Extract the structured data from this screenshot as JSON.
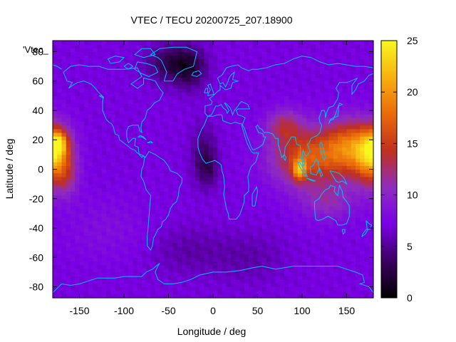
{
  "chart_data": {
    "type": "heatmap",
    "title": "VTEC / TECU 20200725_207.18900",
    "xlabel": "Longitude / deg",
    "ylabel": "Latitude / deg",
    "series_label": "'Vtec_",
    "xlim": [
      -180,
      180
    ],
    "ylim": [
      -87.5,
      87.5
    ],
    "x_ticks": [
      -150,
      -100,
      -50,
      0,
      50,
      100,
      150
    ],
    "y_ticks": [
      -80,
      -60,
      -40,
      -20,
      0,
      20,
      40,
      60,
      80
    ],
    "colorbar": {
      "range": [
        0,
        25
      ],
      "ticks": [
        0,
        5,
        10,
        15,
        20,
        25
      ],
      "colors": [
        "#000000",
        "#3a0060",
        "#7a00e6",
        "#8f2cc0",
        "#c0301e",
        "#ea6a0a",
        "#f8b010",
        "#f8f820"
      ]
    },
    "grid": {
      "lon_step": 5,
      "lat_step": 2.5,
      "background_value": 7,
      "blobs": [
        {
          "lon": -178,
          "lat": 14,
          "amp": 10.5,
          "slon": 13,
          "slat": 11
        },
        {
          "lon": -173,
          "lat": 18,
          "amp": 6.5,
          "slon": 6,
          "slat": 5
        },
        {
          "lon": -165,
          "lat": -5,
          "amp": 4.5,
          "slon": 10,
          "slat": 10
        },
        {
          "lon": 105,
          "lat": 8,
          "amp": 9,
          "slon": 28,
          "slat": 14
        },
        {
          "lon": 97,
          "lat": 0,
          "amp": 9,
          "slon": 5,
          "slat": 5
        },
        {
          "lon": 155,
          "lat": 15,
          "amp": 10.5,
          "slon": 22,
          "slat": 13
        },
        {
          "lon": 175,
          "lat": 0,
          "amp": 4,
          "slon": 12,
          "slat": 12
        },
        {
          "lon": 80,
          "lat": 30,
          "amp": 5,
          "slon": 14,
          "slat": 8
        },
        {
          "lon": 130,
          "lat": -22,
          "amp": 3.5,
          "slon": 22,
          "slat": 9
        },
        {
          "lon": -45,
          "lat": 72,
          "amp": -4.5,
          "slon": 20,
          "slat": 9
        },
        {
          "lon": -25,
          "lat": 68,
          "amp": -3,
          "slon": 12,
          "slat": 10
        },
        {
          "lon": -10,
          "lat": 10,
          "amp": -3,
          "slon": 10,
          "slat": 14
        },
        {
          "lon": -5,
          "lat": 0,
          "amp": -2,
          "slon": 8,
          "slat": 8
        },
        {
          "lon": -30,
          "lat": -55,
          "amp": -1.5,
          "slon": 30,
          "slat": 12
        },
        {
          "lon": 40,
          "lat": -60,
          "amp": -1.5,
          "slon": 30,
          "slat": 12
        },
        {
          "lon": -120,
          "lat": -40,
          "amp": 1.2,
          "slon": 35,
          "slat": 15
        }
      ]
    }
  }
}
